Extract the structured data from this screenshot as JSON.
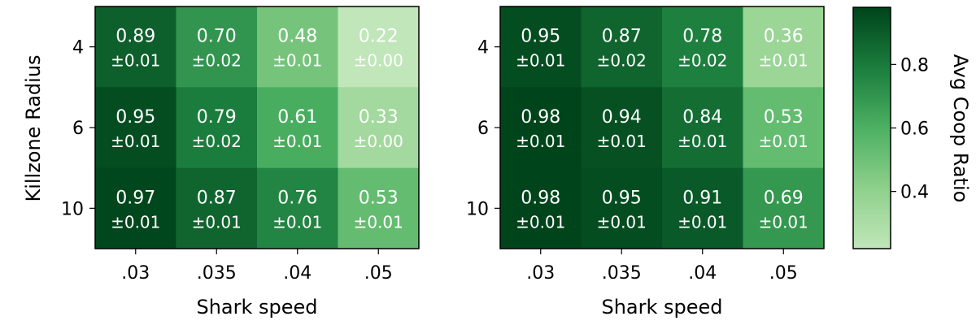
{
  "chart_data": [
    {
      "type": "heatmap",
      "title": "",
      "xlabel": "Shark speed",
      "ylabel": "Killzone Radius",
      "x_categories": [
        ".03",
        ".035",
        ".04",
        ".05"
      ],
      "y_categories": [
        "4",
        "6",
        "10"
      ],
      "values": [
        [
          0.89,
          0.7,
          0.48,
          0.22
        ],
        [
          0.95,
          0.79,
          0.61,
          0.33
        ],
        [
          0.97,
          0.87,
          0.76,
          0.53
        ]
      ],
      "value_labels": [
        [
          "0.89",
          "0.70",
          "0.48",
          "0.22"
        ],
        [
          "0.95",
          "0.79",
          "0.61",
          "0.33"
        ],
        [
          "0.97",
          "0.87",
          "0.76",
          "0.53"
        ]
      ],
      "error_labels": [
        [
          "±0.01",
          "±0.02",
          "±0.01",
          "±0.00"
        ],
        [
          "±0.01",
          "±0.02",
          "±0.01",
          "±0.00"
        ],
        [
          "±0.01",
          "±0.01",
          "±0.01",
          "±0.01"
        ]
      ]
    },
    {
      "type": "heatmap",
      "title": "",
      "xlabel": "Shark speed",
      "ylabel": "",
      "x_categories": [
        ".03",
        ".035",
        ".04",
        ".05"
      ],
      "y_categories": [
        "4",
        "6",
        "10"
      ],
      "values": [
        [
          0.95,
          0.87,
          0.78,
          0.36
        ],
        [
          0.98,
          0.94,
          0.84,
          0.53
        ],
        [
          0.98,
          0.95,
          0.91,
          0.69
        ]
      ],
      "value_labels": [
        [
          "0.95",
          "0.87",
          "0.78",
          "0.36"
        ],
        [
          "0.98",
          "0.94",
          "0.84",
          "0.53"
        ],
        [
          "0.98",
          "0.95",
          "0.91",
          "0.69"
        ]
      ],
      "error_labels": [
        [
          "±0.01",
          "±0.02",
          "±0.02",
          "±0.01"
        ],
        [
          "±0.01",
          "±0.01",
          "±0.01",
          "±0.01"
        ],
        [
          "±0.01",
          "±0.01",
          "±0.01",
          "±0.01"
        ]
      ]
    }
  ],
  "colorbar": {
    "label": "Avg Coop Ratio",
    "range": [
      0.22,
      0.98
    ],
    "ticks": [
      0.4,
      0.6,
      0.8
    ],
    "tick_labels": [
      "0.4",
      "0.6",
      "0.8"
    ],
    "colormap": "Greens",
    "color_low": "#c0e6b9",
    "color_high": "#00441b"
  }
}
